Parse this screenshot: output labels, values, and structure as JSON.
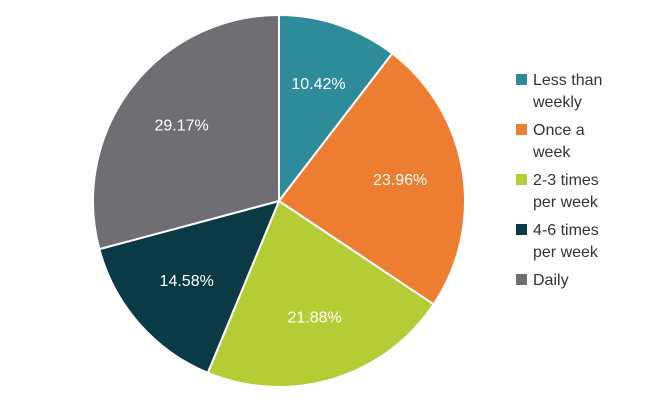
{
  "chart_data": {
    "type": "pie",
    "categories": [
      "Less than weekly",
      "Once a week",
      "2-3 times per week",
      "4-6 times per week",
      "Daily"
    ],
    "legend_lines": [
      [
        "Less than",
        "weekly"
      ],
      [
        "Once a",
        "week"
      ],
      [
        "2-3 times",
        "per week"
      ],
      [
        "4-6 times",
        "per week"
      ],
      [
        "Daily"
      ]
    ],
    "values": [
      10.42,
      23.96,
      21.88,
      14.58,
      29.17
    ],
    "labels": [
      "10.42%",
      "23.96%",
      "21.88%",
      "14.58%",
      "29.17%"
    ],
    "colors": [
      "#2E8B99",
      "#ED7D31",
      "#B5CC34",
      "#0B3A47",
      "#6F6F73"
    ],
    "legend_position": "right",
    "title": "",
    "start_angle": "12 o'clock",
    "direction": "clockwise"
  }
}
